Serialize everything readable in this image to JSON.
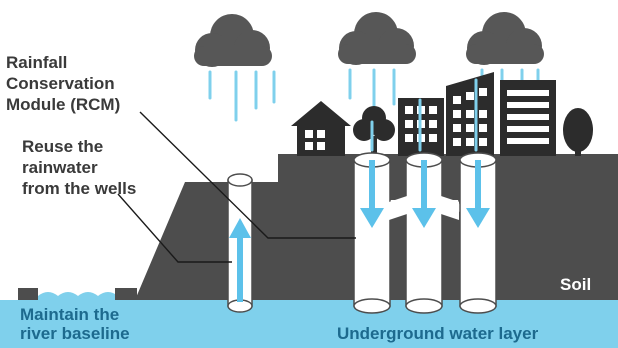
{
  "labels": {
    "rcm_line1": "Rainfall",
    "rcm_line2": "Conservation",
    "rcm_line3": "Module (RCM)",
    "reuse_line1": "Reuse the",
    "reuse_line2": "rainwater",
    "reuse_line3": "from the wells",
    "soil": "Soil",
    "baseline_line1": "Maintain the",
    "baseline_line2": "river baseline",
    "underground": "Underground water layer"
  },
  "colors": {
    "cloud": "#575757",
    "rain": "#7fd0ec",
    "soil": "#4d4d4d",
    "water": "#7fd0ec",
    "well": "#ffffff",
    "arrow": "#5cc1ea",
    "text_dark": "#3a3a3a",
    "text_blue": "#1d6a8e"
  }
}
